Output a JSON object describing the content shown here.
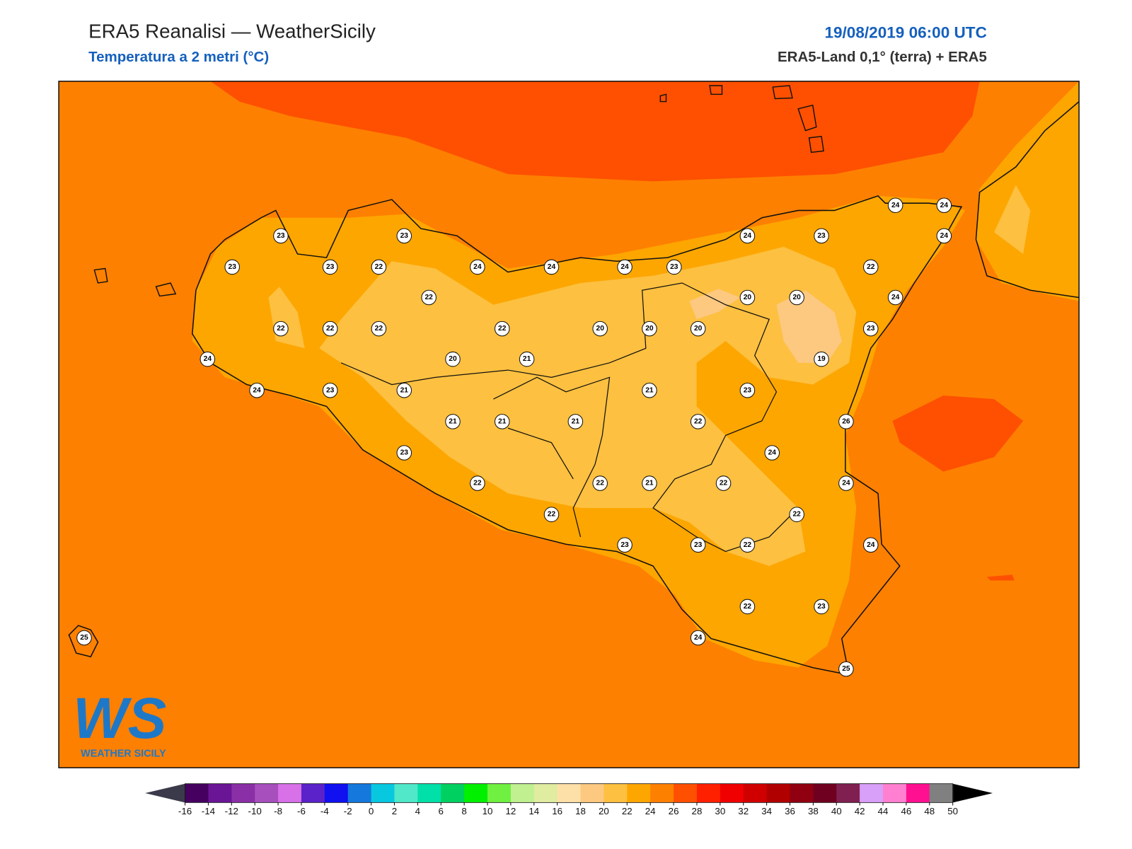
{
  "header": {
    "title": "ERA5 Reanalisi — WeatherSicily",
    "subtitle": "Temperatura a 2 metri (°C)",
    "date": "19/08/2019 06:00 UTC",
    "source": "ERA5-Land 0,1° (terra) + ERA5"
  },
  "logo": {
    "mark": "WS",
    "name": "WEATHER SICILY"
  },
  "stations": [
    23,
    23,
    23,
    23,
    22,
    24,
    24,
    24,
    23,
    24,
    23,
    24,
    24,
    24,
    22,
    22,
    20,
    20,
    24,
    22,
    22,
    22,
    22,
    20,
    20,
    20,
    23,
    24,
    20,
    21,
    19,
    24,
    23,
    21,
    21,
    23,
    21,
    21,
    21,
    22,
    26,
    23,
    24,
    22,
    22,
    21,
    22,
    24,
    22,
    22,
    23,
    23,
    22,
    24,
    22,
    23,
    24,
    25,
    25
  ],
  "colorbar": {
    "ticks": [
      -16,
      -14,
      -12,
      -10,
      -8,
      -6,
      -4,
      -2,
      0,
      2,
      4,
      6,
      8,
      10,
      12,
      14,
      16,
      18,
      20,
      22,
      24,
      26,
      28,
      30,
      32,
      34,
      36,
      38,
      40,
      42,
      44,
      46,
      48,
      50
    ],
    "colors": [
      "#450060",
      "#6a1595",
      "#8a2fa5",
      "#a64fbd",
      "#d870e8",
      "#5a22c8",
      "#1010f0",
      "#1478dc",
      "#08c8e0",
      "#50e8c8",
      "#00e0a8",
      "#00d060",
      "#00f000",
      "#70f040",
      "#c0f090",
      "#e0eca0",
      "#fde0a8",
      "#fdc880",
      "#fdc040",
      "#fda600",
      "#fe8000",
      "#fe5000",
      "#ff2000",
      "#f00000",
      "#d00000",
      "#b00000",
      "#900010",
      "#700020",
      "#802050",
      "#d8a0f8",
      "#ff80d0",
      "#ff1090",
      "#808080",
      "#383838"
    ],
    "under_color": "#3a3a4a",
    "over_color": "#000000"
  }
}
